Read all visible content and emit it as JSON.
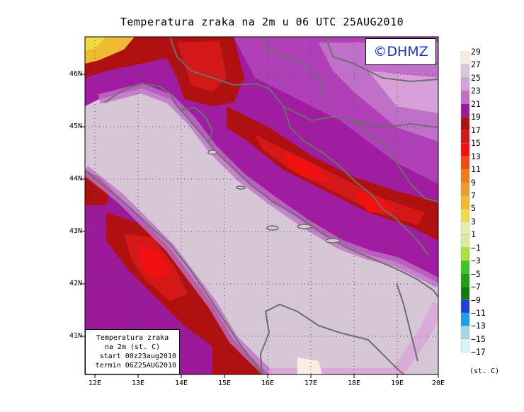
{
  "title": "Temperatura zraka na 2m u 06 UTC 25AUG2010",
  "copyright": "©DHMZ",
  "info_box": {
    "line1": "Temperatura zraka",
    "line2": "na 2m (st. C)",
    "line3": "start 00z23aug2010",
    "line4": "termin 06Z25AUG2010"
  },
  "axes": {
    "lon_ticks": [
      "12E",
      "13E",
      "14E",
      "15E",
      "16E",
      "17E",
      "18E",
      "19E",
      "20E"
    ],
    "lat_ticks": [
      "46N",
      "45N",
      "44N",
      "43N",
      "42N",
      "41N"
    ]
  },
  "legend": {
    "unit": "(st. C)",
    "labels": [
      "29",
      "27",
      "25",
      "23",
      "21",
      "19",
      "17",
      "15",
      "13",
      "11",
      "9",
      "7",
      "5",
      "3",
      "1",
      "−1",
      "−3",
      "−5",
      "−7",
      "−9",
      "−11",
      "−13",
      "−15",
      "−17"
    ],
    "colors": [
      "#fbeee0",
      "#d8c8d8",
      "#d8a0d8",
      "#c070c8",
      "#9a1a9a",
      "#b01010",
      "#d41818",
      "#f21010",
      "#f24a10",
      "#f27a10",
      "#ee9a30",
      "#eebc30",
      "#eedc40",
      "#e8eab0",
      "#d6ee9a",
      "#a8e23a",
      "#44c22a",
      "#20a010",
      "#107a10",
      "#2040e0",
      "#1aa0e8",
      "#a8d8e8",
      "#d8f6f6"
    ],
    "swatch_colors_semantics": "bins between labels, top to bottom"
  },
  "colors": {
    "sea": "#d6c6d6",
    "coast": "#6e6e6e"
  }
}
